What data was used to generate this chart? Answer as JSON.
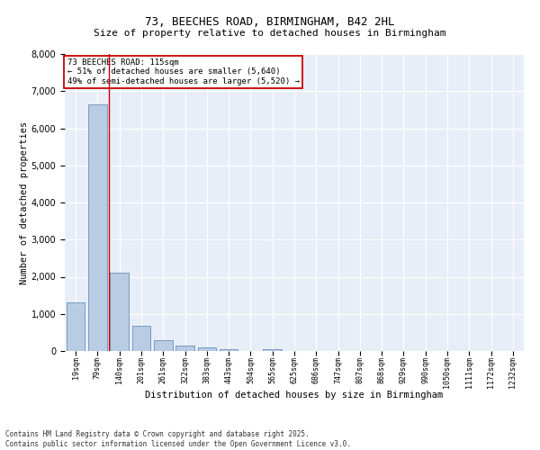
{
  "title_line1": "73, BEECHES ROAD, BIRMINGHAM, B42 2HL",
  "title_line2": "Size of property relative to detached houses in Birmingham",
  "xlabel": "Distribution of detached houses by size in Birmingham",
  "ylabel": "Number of detached properties",
  "bar_labels": [
    "19sqm",
    "79sqm",
    "140sqm",
    "201sqm",
    "261sqm",
    "322sqm",
    "383sqm",
    "443sqm",
    "504sqm",
    "565sqm",
    "625sqm",
    "686sqm",
    "747sqm",
    "807sqm",
    "868sqm",
    "929sqm",
    "990sqm",
    "1050sqm",
    "1111sqm",
    "1172sqm",
    "1232sqm"
  ],
  "bar_values": [
    1300,
    6650,
    2100,
    680,
    300,
    140,
    90,
    60,
    0,
    60,
    0,
    0,
    0,
    0,
    0,
    0,
    0,
    0,
    0,
    0,
    0
  ],
  "bar_color": "#b8cce4",
  "bar_edge_color": "#5580b0",
  "vline_color": "#cc0000",
  "ylim": [
    0,
    8000
  ],
  "annotation_title": "73 BEECHES ROAD: 115sqm",
  "annotation_line1": "← 51% of detached houses are smaller (5,640)",
  "annotation_line2": "49% of semi-detached houses are larger (5,520) →",
  "annotation_box_color": "#cc0000",
  "bg_color": "#e8eef8",
  "footer_line1": "Contains HM Land Registry data © Crown copyright and database right 2025.",
  "footer_line2": "Contains public sector information licensed under the Open Government Licence v3.0.",
  "title_fontsize": 9,
  "subtitle_fontsize": 8,
  "tick_fontsize": 6,
  "ylabel_fontsize": 7.5,
  "xlabel_fontsize": 7.5,
  "annotation_fontsize": 6.5,
  "footer_fontsize": 5.5
}
